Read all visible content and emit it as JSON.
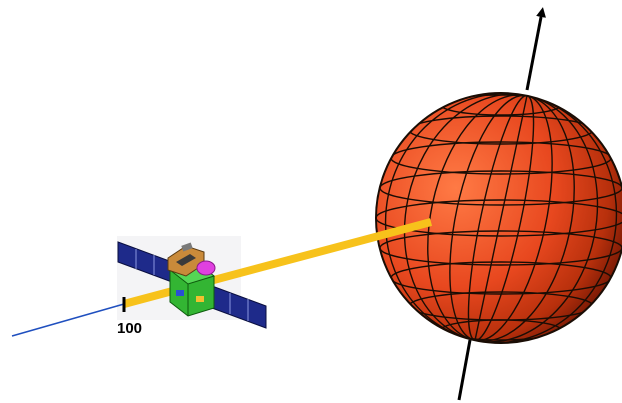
{
  "colors": {
    "background": "#ffffff",
    "planet": "#e8481f",
    "planet_highlight": "#ff7a45",
    "planet_shadow": "#7a1a05",
    "grid_lines": "#1a0d05",
    "axis": "#000000",
    "beam": "#f7c21b",
    "trajectory": "#1f4fbf",
    "solar_panel": "#1e2a8a",
    "spacecraft_body": "#33b533",
    "antenna": "#e040e0"
  },
  "scene": {
    "planet": {
      "name": "planet-sphere",
      "style": "lat-long grid"
    },
    "spin_axis": {
      "name": "planet-spin-axis",
      "direction": "up"
    },
    "spacecraft": {
      "name": "spacecraft",
      "icon": "satellite-icon"
    },
    "beam": {
      "name": "pointing-beam"
    },
    "trajectory": {
      "name": "trajectory-line"
    },
    "marker": {
      "label": "100"
    }
  }
}
